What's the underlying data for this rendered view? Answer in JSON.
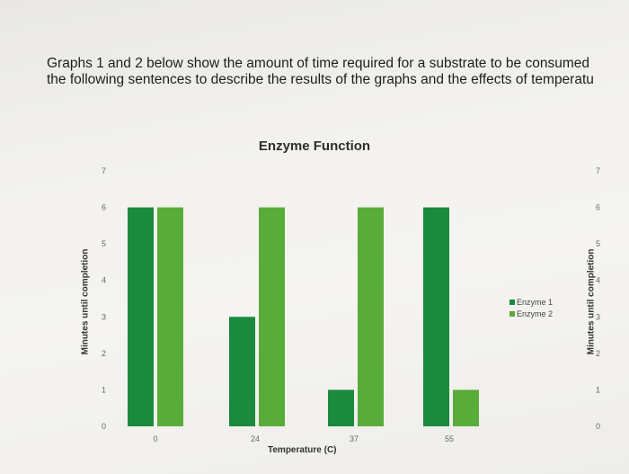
{
  "question": {
    "line1": "Graphs 1 and 2 below show the amount of time required for a substrate to be consumed",
    "line2": "the following sentences to describe the results of the graphs and the effects of temperatu"
  },
  "chart_data": {
    "type": "bar",
    "title": "Enzyme Function",
    "xlabel": "Temperature (C)",
    "ylabel": "Minutes until completion",
    "categories": [
      "0",
      "24",
      "37",
      "55"
    ],
    "series": [
      {
        "name": "Enzyme 1",
        "values": [
          6,
          3,
          1,
          6
        ],
        "color": "#1a8a3e"
      },
      {
        "name": "Enzyme 2",
        "values": [
          6,
          6,
          6,
          1
        ],
        "color": "#5aac3a"
      }
    ],
    "ylim": [
      0,
      7
    ],
    "yticks": [
      "0",
      "1",
      "2",
      "3",
      "4",
      "5",
      "6",
      "7"
    ],
    "legend_position": "right",
    "secondary_axis": true
  }
}
